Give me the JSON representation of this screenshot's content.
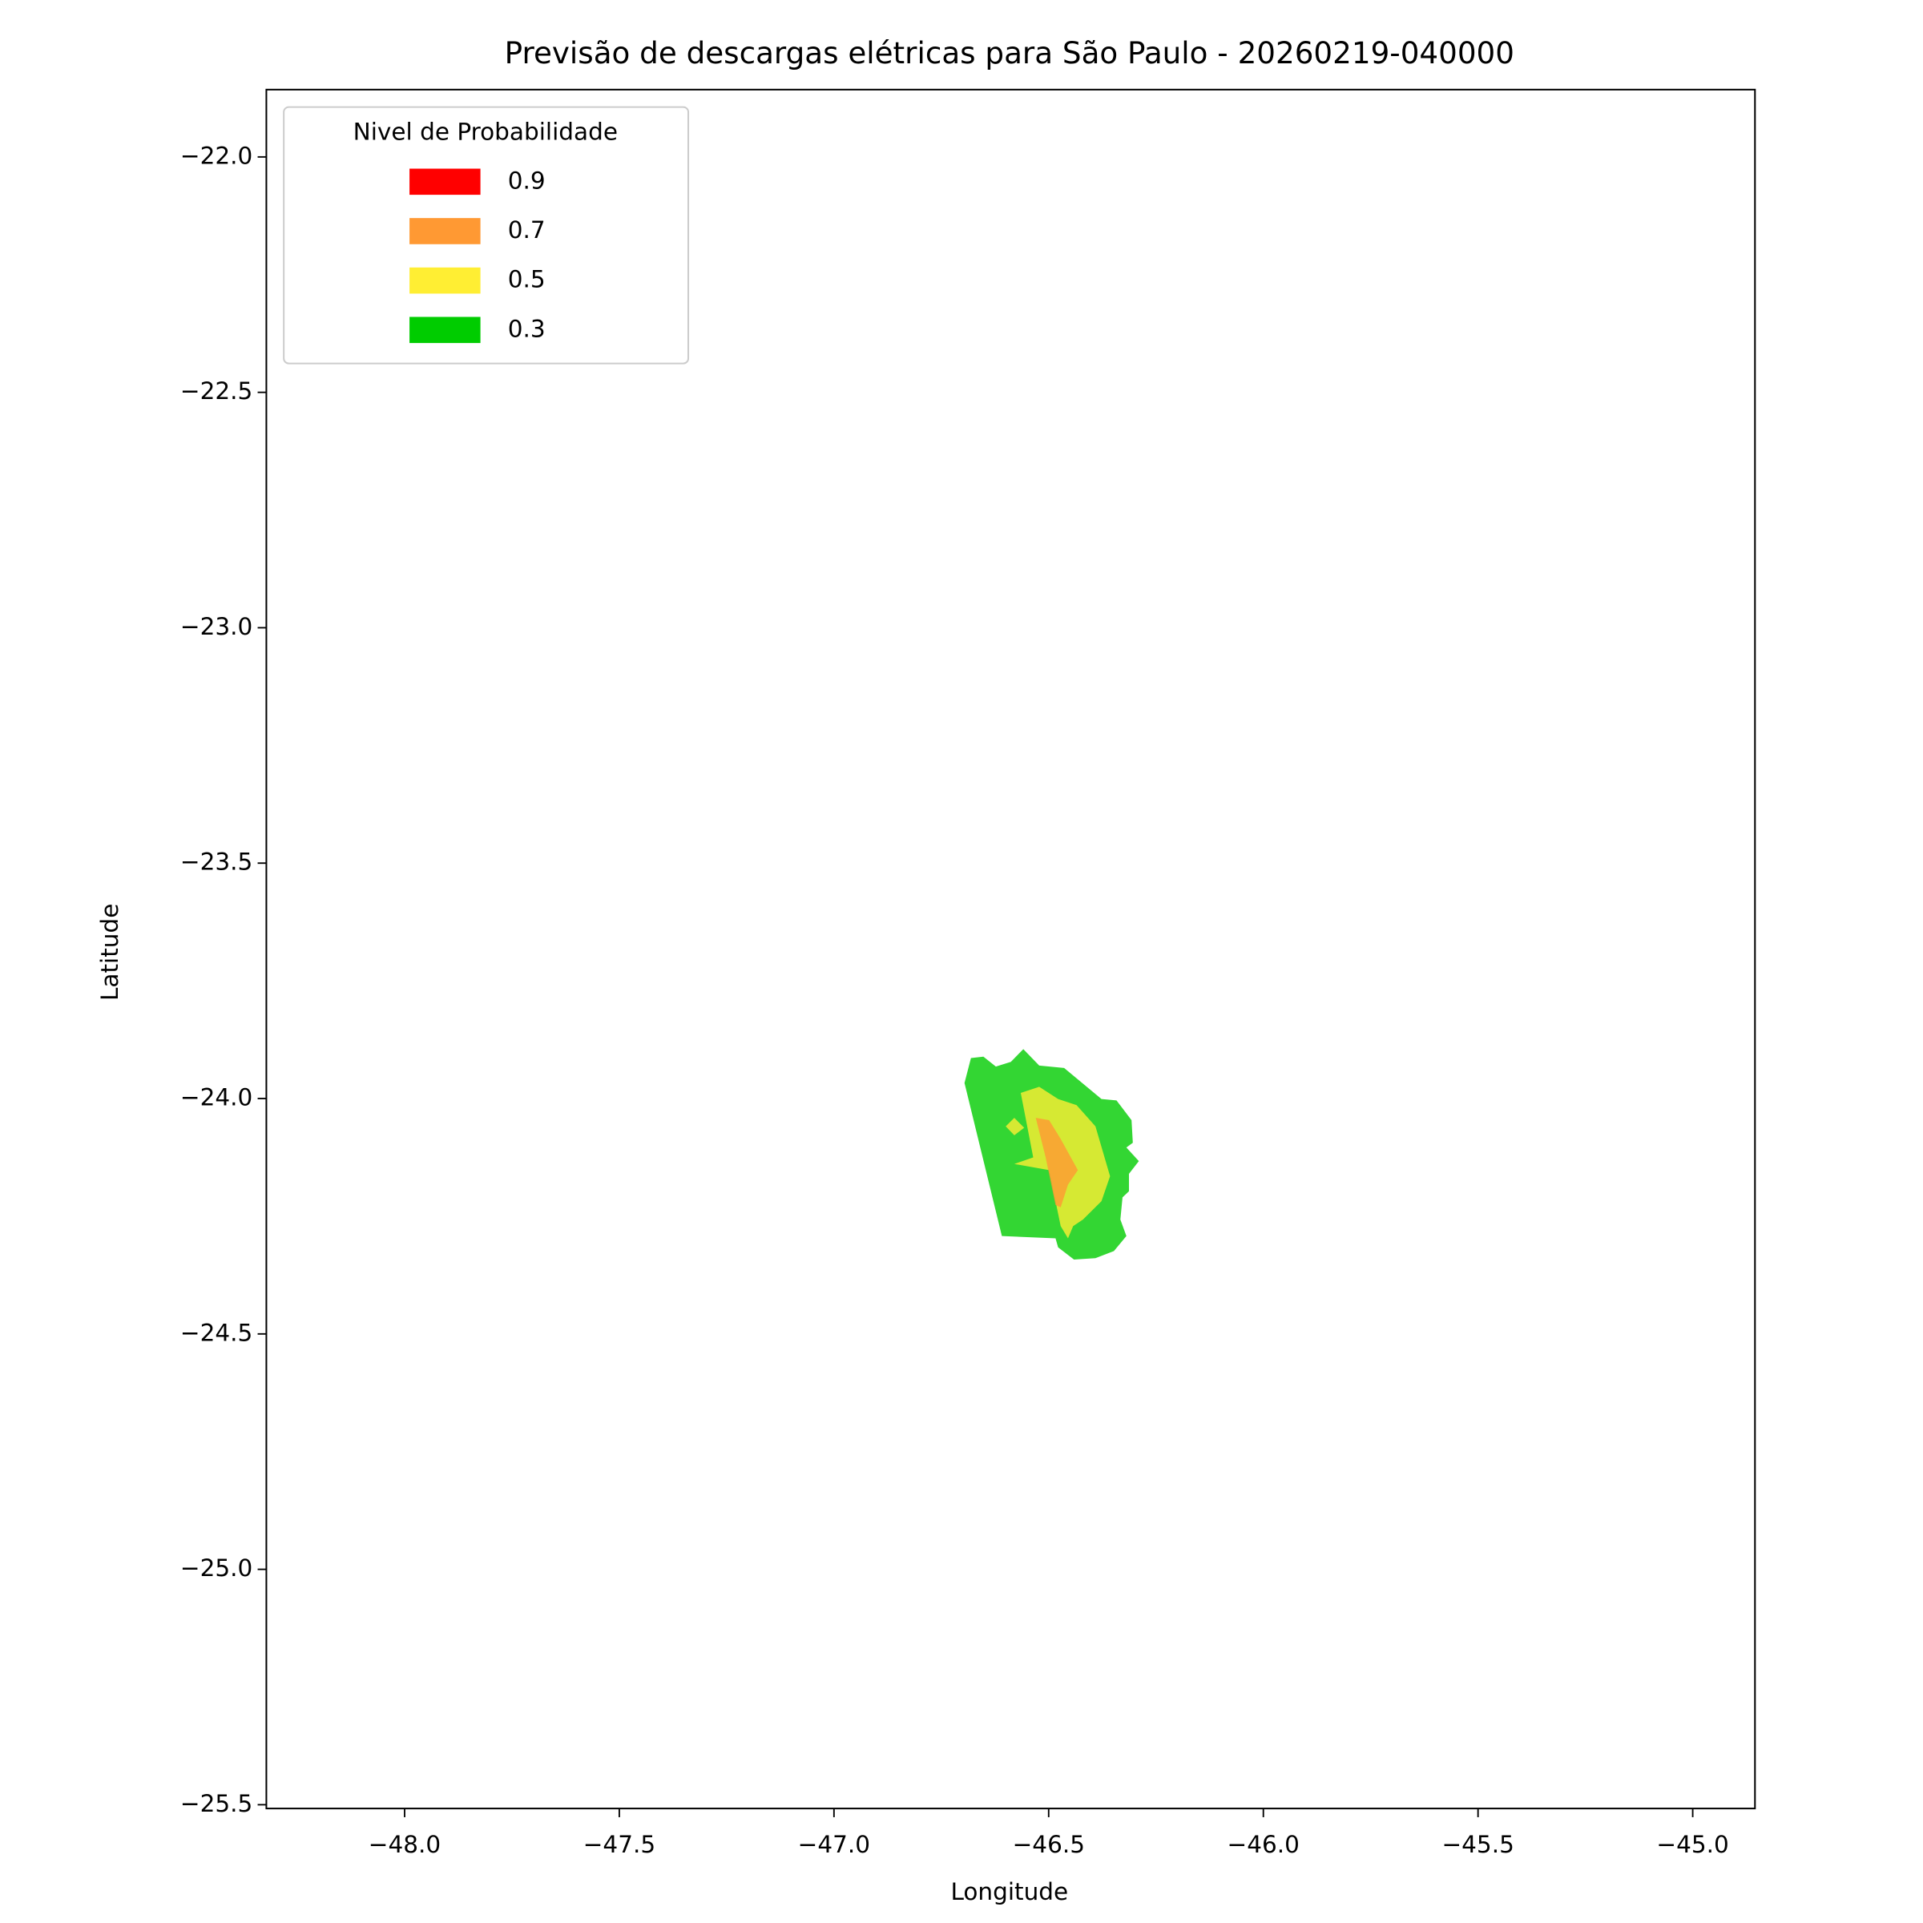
{
  "chart_data": {
    "type": "contour",
    "title": "Previsão de descargas elétricas para São Paulo - 20260219-040000",
    "x_label": "Longitude",
    "y_label": "Latitude",
    "xlim": [
      -48.322,
      -44.855
    ],
    "ylim": [
      -25.508,
      -21.857
    ],
    "xticks": [
      {
        "value": -48.0,
        "label": "−48.0"
      },
      {
        "value": -47.5,
        "label": "−47.5"
      },
      {
        "value": -47.0,
        "label": "−47.0"
      },
      {
        "value": -46.5,
        "label": "−46.5"
      },
      {
        "value": -46.0,
        "label": "−46.0"
      },
      {
        "value": -45.5,
        "label": "−45.5"
      },
      {
        "value": -45.0,
        "label": "−45.0"
      }
    ],
    "yticks": [
      {
        "value": -22.0,
        "label": "−22.0"
      },
      {
        "value": -22.5,
        "label": "−22.5"
      },
      {
        "value": -23.0,
        "label": "−23.0"
      },
      {
        "value": -23.5,
        "label": "−23.5"
      },
      {
        "value": -24.0,
        "label": "−24.0"
      },
      {
        "value": -24.5,
        "label": "−24.5"
      },
      {
        "value": -25.0,
        "label": "−25.0"
      },
      {
        "value": -25.5,
        "label": "−25.5"
      }
    ],
    "legend_title": "Nivel de Probabilidade",
    "legend_position": "upper left",
    "alpha": 0.8,
    "series": [
      {
        "name": "0.9",
        "color": "#ff0000",
        "polygons": []
      },
      {
        "name": "0.7",
        "color": "#ff9933",
        "polygons": [
          [
            [
              -46.53,
              -24.041
            ],
            [
              -46.499,
              -24.046
            ],
            [
              -46.472,
              -24.086
            ],
            [
              -46.432,
              -24.152
            ],
            [
              -46.455,
              -24.183
            ],
            [
              -46.472,
              -24.231
            ],
            [
              -46.484,
              -24.226
            ],
            [
              -46.507,
              -24.125
            ]
          ]
        ]
      },
      {
        "name": "0.5",
        "color": "#ffee33",
        "polygons": [
          [
            [
              -46.565,
              -23.988
            ],
            [
              -46.522,
              -23.975
            ],
            [
              -46.478,
              -24.001
            ],
            [
              -46.435,
              -24.014
            ],
            [
              -46.391,
              -24.059
            ],
            [
              -46.357,
              -24.165
            ],
            [
              -46.377,
              -24.218
            ],
            [
              -46.42,
              -24.257
            ],
            [
              -46.443,
              -24.271
            ],
            [
              -46.455,
              -24.297
            ],
            [
              -46.472,
              -24.271
            ],
            [
              -46.499,
              -24.152
            ],
            [
              -46.58,
              -24.139
            ],
            [
              -46.536,
              -24.125
            ]
          ],
          [
            [
              -46.6,
              -24.059
            ],
            [
              -46.58,
              -24.041
            ],
            [
              -46.557,
              -24.062
            ],
            [
              -46.58,
              -24.078
            ]
          ]
        ]
      },
      {
        "name": "0.3",
        "color": "#00cc00",
        "polygons": [
          [
            [
              -46.681,
              -23.914
            ],
            [
              -46.652,
              -23.911
            ],
            [
              -46.623,
              -23.932
            ],
            [
              -46.588,
              -23.922
            ],
            [
              -46.559,
              -23.895
            ],
            [
              -46.522,
              -23.93
            ],
            [
              -46.464,
              -23.935
            ],
            [
              -46.377,
              -24.001
            ],
            [
              -46.342,
              -24.004
            ],
            [
              -46.307,
              -24.046
            ],
            [
              -46.304,
              -24.094
            ],
            [
              -46.319,
              -24.104
            ],
            [
              -46.29,
              -24.133
            ],
            [
              -46.313,
              -24.16
            ],
            [
              -46.313,
              -24.197
            ],
            [
              -46.328,
              -24.21
            ],
            [
              -46.333,
              -24.257
            ],
            [
              -46.319,
              -24.292
            ],
            [
              -46.348,
              -24.324
            ],
            [
              -46.391,
              -24.339
            ],
            [
              -46.441,
              -24.342
            ],
            [
              -46.478,
              -24.316
            ],
            [
              -46.484,
              -24.297
            ],
            [
              -46.609,
              -24.292
            ],
            [
              -46.696,
              -23.967
            ]
          ]
        ]
      }
    ]
  }
}
